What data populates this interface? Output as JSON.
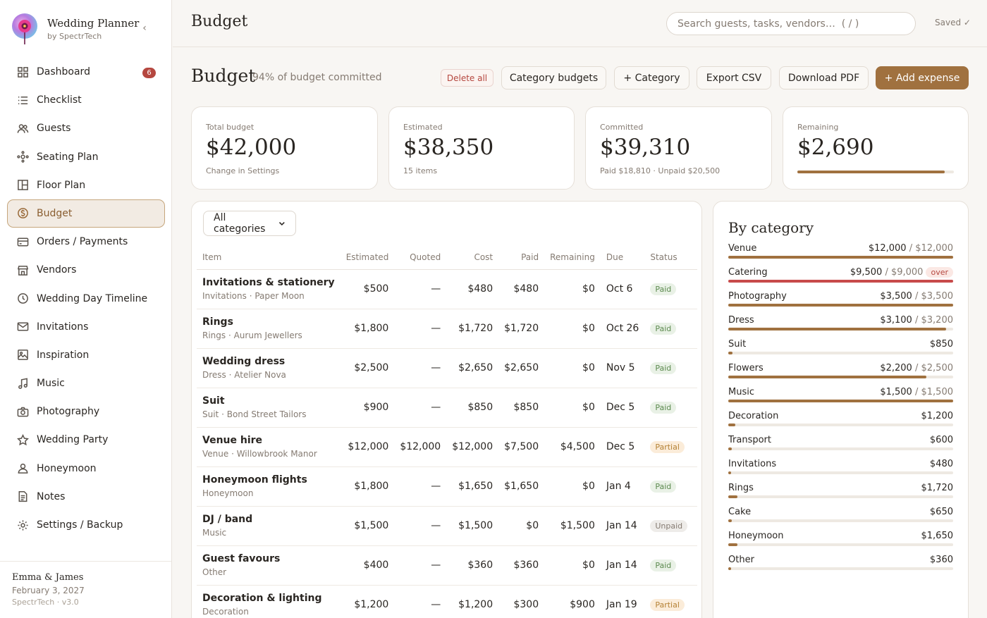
{
  "app": {
    "name": "Wedding Planner",
    "by": "by SpectrTech"
  },
  "topbar": {
    "title": "Budget",
    "search_placeholder": "Search guests, tasks, vendors…  ( / )",
    "saved": "Saved ✓"
  },
  "nav": [
    {
      "label": "Dashboard",
      "icon": "grid-icon",
      "badge": "6"
    },
    {
      "label": "Checklist",
      "icon": "list-icon"
    },
    {
      "label": "Guests",
      "icon": "people-icon"
    },
    {
      "label": "Seating Plan",
      "icon": "seating-icon"
    },
    {
      "label": "Floor Plan",
      "icon": "floor-plan-icon"
    },
    {
      "label": "Budget",
      "icon": "dollar-icon",
      "active": true
    },
    {
      "label": "Orders / Payments",
      "icon": "card-icon"
    },
    {
      "label": "Vendors",
      "icon": "store-icon"
    },
    {
      "label": "Wedding Day Timeline",
      "icon": "clock-icon"
    },
    {
      "label": "Invitations",
      "icon": "mail-icon"
    },
    {
      "label": "Inspiration",
      "icon": "image-icon"
    },
    {
      "label": "Music",
      "icon": "music-icon"
    },
    {
      "label": "Photography",
      "icon": "camera-icon"
    },
    {
      "label": "Wedding Party",
      "icon": "star-icon"
    },
    {
      "label": "Honeymoon",
      "icon": "person-icon"
    },
    {
      "label": "Notes",
      "icon": "note-icon"
    },
    {
      "label": "Settings / Backup",
      "icon": "gear-icon"
    }
  ],
  "footer": {
    "couple": "Emma & James",
    "date": "February 3, 2027",
    "version": "SpectrTech · v3.0"
  },
  "page": {
    "title": "Budget",
    "subtitle": "94% of budget committed"
  },
  "actions": {
    "delete_all": "Delete all",
    "category_budgets": "Category budgets",
    "add_category": "+ Category",
    "export_csv": "Export CSV",
    "download_pdf": "Download PDF",
    "add_expense": "+ Add expense"
  },
  "stats": [
    {
      "label": "Total budget",
      "value": "$42,000",
      "note": "Change in Settings"
    },
    {
      "label": "Estimated",
      "value": "$38,350",
      "note": "15 items"
    },
    {
      "label": "Committed",
      "value": "$39,310",
      "note": "Paid $18,810 · Unpaid $20,500"
    },
    {
      "label": "Remaining",
      "value": "$2,690",
      "meter_fraction": 0.94
    }
  ],
  "filter": {
    "value": "All categories"
  },
  "table": {
    "headers": [
      "Item",
      "Estimated",
      "Quoted",
      "Cost",
      "Paid",
      "Remaining",
      "Due",
      "Status"
    ],
    "rows": [
      {
        "name": "Invitations & stationery",
        "sub": "Invitations · Paper Moon",
        "estimated": "$500",
        "quoted": "—",
        "cost": "$480",
        "paid": "$480",
        "remaining": "$0",
        "due": "Oct 6",
        "status": "Paid",
        "kind": "paid"
      },
      {
        "name": "Rings",
        "sub": "Rings · Aurum Jewellers",
        "estimated": "$1,800",
        "quoted": "—",
        "cost": "$1,720",
        "paid": "$1,720",
        "remaining": "$0",
        "due": "Oct 26",
        "status": "Paid",
        "kind": "paid"
      },
      {
        "name": "Wedding dress",
        "sub": "Dress · Atelier Nova",
        "estimated": "$2,500",
        "quoted": "—",
        "cost": "$2,650",
        "paid": "$2,650",
        "remaining": "$0",
        "due": "Nov 5",
        "status": "Paid",
        "kind": "paid"
      },
      {
        "name": "Suit",
        "sub": "Suit · Bond Street Tailors",
        "estimated": "$900",
        "quoted": "—",
        "cost": "$850",
        "paid": "$850",
        "remaining": "$0",
        "due": "Dec 5",
        "status": "Paid",
        "kind": "paid"
      },
      {
        "name": "Venue hire",
        "sub": "Venue · Willowbrook Manor",
        "estimated": "$12,000",
        "quoted": "$12,000",
        "cost": "$12,000",
        "paid": "$7,500",
        "remaining": "$4,500",
        "due": "Dec 5",
        "status": "Partial",
        "kind": "partial"
      },
      {
        "name": "Honeymoon flights",
        "sub": "Honeymoon",
        "estimated": "$1,800",
        "quoted": "—",
        "cost": "$1,650",
        "paid": "$1,650",
        "remaining": "$0",
        "due": "Jan 4",
        "status": "Paid",
        "kind": "paid"
      },
      {
        "name": "DJ / band",
        "sub": "Music",
        "estimated": "$1,500",
        "quoted": "—",
        "cost": "$1,500",
        "paid": "$0",
        "remaining": "$1,500",
        "due": "Jan 14",
        "status": "Unpaid",
        "kind": "unpaid"
      },
      {
        "name": "Guest favours",
        "sub": "Other",
        "estimated": "$400",
        "quoted": "—",
        "cost": "$360",
        "paid": "$360",
        "remaining": "$0",
        "due": "Jan 14",
        "status": "Paid",
        "kind": "paid"
      },
      {
        "name": "Decoration & lighting",
        "sub": "Decoration",
        "estimated": "$1,200",
        "quoted": "—",
        "cost": "$1,200",
        "paid": "$300",
        "remaining": "$900",
        "due": "Jan 19",
        "status": "Partial",
        "kind": "partial"
      }
    ]
  },
  "by_category": {
    "title": "By category",
    "items": [
      {
        "name": "Venue",
        "amount": "$12,000",
        "budget": "$12,000",
        "fraction": 1.0
      },
      {
        "name": "Catering",
        "amount": "$9,500",
        "budget": "$9,000",
        "over": "over",
        "fraction": 1.0
      },
      {
        "name": "Photography",
        "amount": "$3,500",
        "budget": "$3,500",
        "fraction": 1.0
      },
      {
        "name": "Dress",
        "amount": "$3,100",
        "budget": "$3,200",
        "fraction": 0.97
      },
      {
        "name": "Suit",
        "amount": "$850",
        "fraction": 0.02
      },
      {
        "name": "Flowers",
        "amount": "$2,200",
        "budget": "$2,500",
        "fraction": 0.88
      },
      {
        "name": "Music",
        "amount": "$1,500",
        "budget": "$1,500",
        "fraction": 1.0
      },
      {
        "name": "Decoration",
        "amount": "$1,200",
        "fraction": 0.03
      },
      {
        "name": "Transport",
        "amount": "$600",
        "fraction": 0.015
      },
      {
        "name": "Invitations",
        "amount": "$480",
        "fraction": 0.012
      },
      {
        "name": "Rings",
        "amount": "$1,720",
        "fraction": 0.04
      },
      {
        "name": "Cake",
        "amount": "$650",
        "fraction": 0.016
      },
      {
        "name": "Honeymoon",
        "amount": "$1,650",
        "fraction": 0.04
      },
      {
        "name": "Other",
        "amount": "$360",
        "fraction": 0.01
      }
    ]
  }
}
